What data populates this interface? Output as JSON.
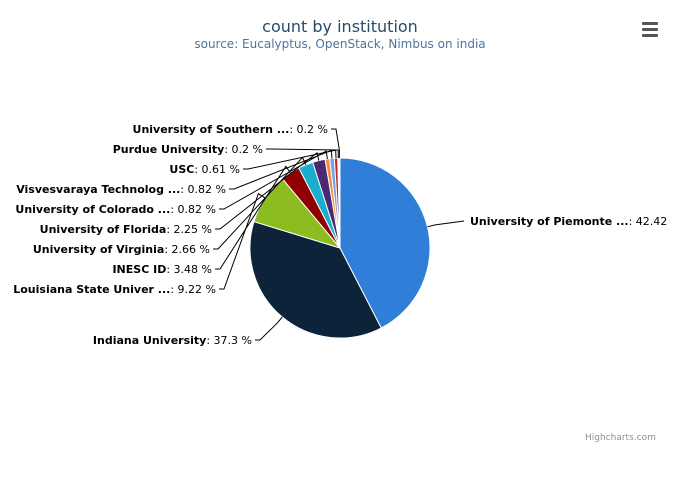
{
  "header": {
    "title": "count by institution",
    "subtitle": "source: Eucalyptus, OpenStack, Nimbus on india"
  },
  "credits": "Highcharts.com",
  "chart_data": {
    "type": "pie",
    "title": "count by institution",
    "subtitle": "source: Eucalyptus, OpenStack, Nimbus on india",
    "slices": [
      {
        "name": "University of Piemonte ...",
        "value": 42.42,
        "label_value": "42.42",
        "color": "#2f7ed8"
      },
      {
        "name": "Indiana University",
        "value": 37.3,
        "label_value": "37.3 %",
        "color": "#0d233a"
      },
      {
        "name": "Louisiana State Univer ...",
        "value": 9.22,
        "label_value": "9.22 %",
        "color": "#8bbc21"
      },
      {
        "name": "INESC ID",
        "value": 3.48,
        "label_value": "3.48 %",
        "color": "#910000"
      },
      {
        "name": "University of Virginia",
        "value": 2.66,
        "label_value": "2.66 %",
        "color": "#1aadce"
      },
      {
        "name": "University of Florida",
        "value": 2.25,
        "label_value": "2.25 %",
        "color": "#492970"
      },
      {
        "name": "University of Colorado ...",
        "value": 0.82,
        "label_value": "0.82 %",
        "color": "#f28f43"
      },
      {
        "name": "Visvesvaraya Technolog ...",
        "value": 0.82,
        "label_value": "0.82 %",
        "color": "#77a1e5"
      },
      {
        "name": "USC",
        "value": 0.61,
        "label_value": "0.61 %",
        "color": "#c42525"
      },
      {
        "name": "Purdue University",
        "value": 0.2,
        "label_value": "0.2 %",
        "color": "#a6c96a"
      },
      {
        "name": "University of Southern ...",
        "value": 0.2,
        "label_value": "0.2 %",
        "color": "#2f7ed8"
      }
    ]
  }
}
